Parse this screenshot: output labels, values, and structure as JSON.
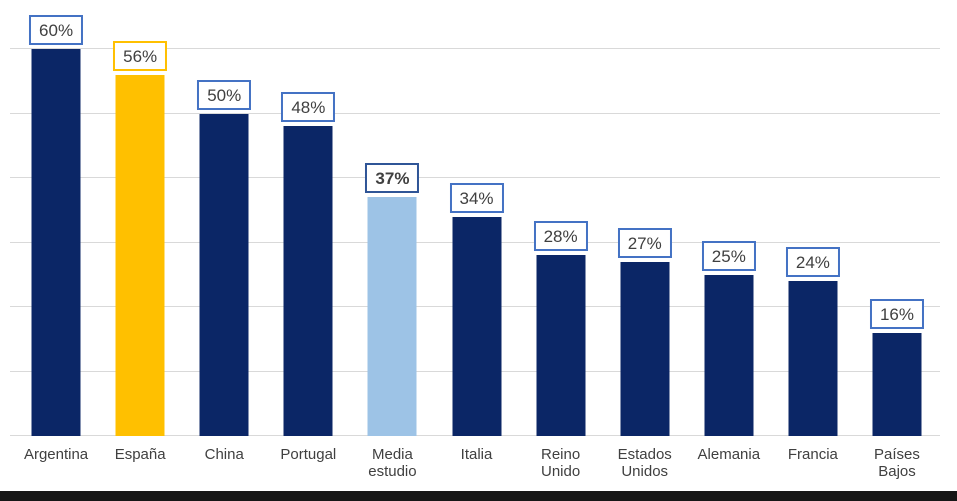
{
  "chart_data": {
    "type": "bar",
    "title": "",
    "xlabel": "",
    "ylabel": "",
    "categories": [
      "Argentina",
      "España",
      "China",
      "Portugal",
      "Media estudio",
      "Italia",
      "Reino Unido",
      "Estados Unidos",
      "Alemania",
      "Francia",
      "Países Bajos"
    ],
    "values": [
      60,
      56,
      50,
      48,
      37,
      34,
      28,
      27,
      25,
      24,
      16
    ],
    "data_labels": [
      "60%",
      "56%",
      "50%",
      "48%",
      "37%",
      "34%",
      "28%",
      "27%",
      "25%",
      "24%",
      "16%"
    ],
    "bar_colors": [
      "#0B2666",
      "#FFC000",
      "#0B2666",
      "#0B2666",
      "#9DC3E6",
      "#0B2666",
      "#0B2666",
      "#0B2666",
      "#0B2666",
      "#0B2666",
      "#0B2666"
    ],
    "label_border_colors": [
      "#4472C4",
      "#FFC000",
      "#4472C4",
      "#4472C4",
      "#2F5597",
      "#4472C4",
      "#4472C4",
      "#4472C4",
      "#4472C4",
      "#4472C4",
      "#4472C4"
    ],
    "label_bold": [
      false,
      false,
      false,
      false,
      true,
      false,
      false,
      false,
      false,
      false,
      false
    ],
    "ylim": [
      0,
      60
    ],
    "grid_interval": 10,
    "grid": true,
    "legend_position": "none"
  },
  "colors": {
    "bar_default": "#0B2666",
    "bar_espana_highlight": "#FFC000",
    "bar_media_estudio_highlight": "#9DC3E6",
    "data_label_border": "#4472C4",
    "gridline": "#D9D9D9",
    "text": "#404040",
    "bottom_strip": "#161616"
  }
}
